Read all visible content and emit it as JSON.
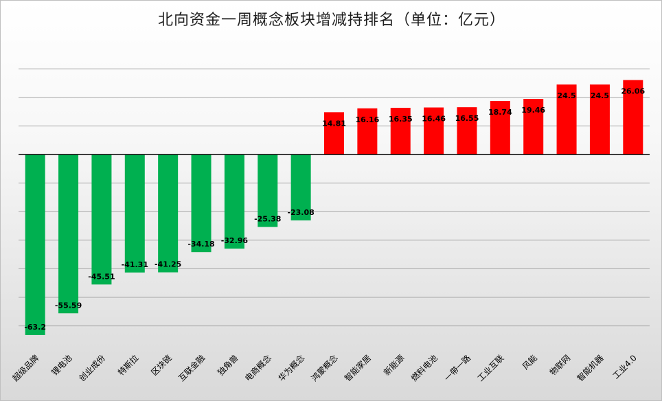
{
  "chart_data": {
    "type": "bar",
    "title": "北向资金一周概念板块增减持排名（单位：亿元）",
    "categories": [
      "超级品牌",
      "锂电池",
      "创业成份",
      "特斯拉",
      "区块链",
      "互联金融",
      "独角兽",
      "电商概念",
      "华为概念",
      "鸿蒙概念",
      "智能家居",
      "新能源",
      "燃料电池",
      "一带一路",
      "工业互联",
      "风能",
      "物联网",
      "智能机器",
      "工业4.0"
    ],
    "values": [
      -63.2,
      -55.59,
      -45.51,
      -41.31,
      -41.25,
      -34.18,
      -32.96,
      -25.38,
      -23.08,
      14.81,
      16.16,
      16.35,
      16.46,
      16.55,
      18.74,
      19.46,
      24.5,
      24.5,
      26.06
    ],
    "value_labels": [
      "-63.2",
      "-55.59",
      "-45.51",
      "-41.31",
      "-41.25",
      "-34.18",
      "-32.96",
      "-25.38",
      "-23.08",
      "14.81",
      "16.16",
      "16.35",
      "16.46",
      "16.55",
      "18.74",
      "19.46",
      "24.5",
      "24.5",
      "26.06"
    ],
    "ylim": [
      -70,
      30
    ],
    "grid": true,
    "colors": {
      "positive": "#ff0000",
      "negative": "#00b050",
      "grid": "#a6a6a6",
      "axis": "#000000"
    }
  }
}
